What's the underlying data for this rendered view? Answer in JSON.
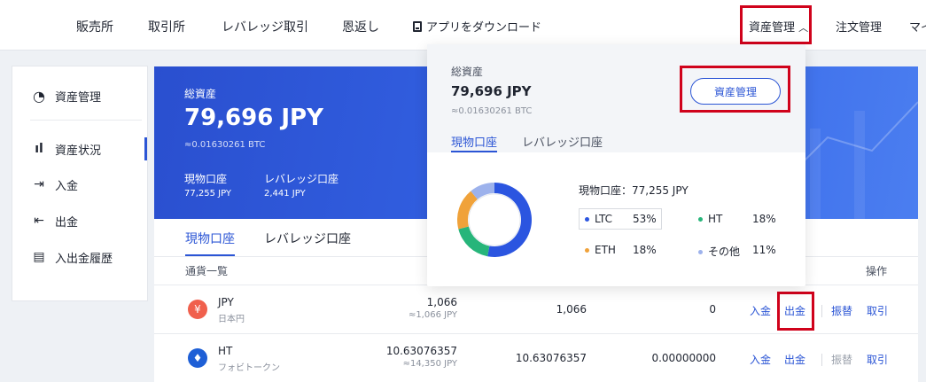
{
  "topnav": {
    "items": [
      "販売所",
      "取引所",
      "レバレッジ取引",
      "恩返し",
      "アプリをダウンロード"
    ],
    "asset_mgmt": "資産管理",
    "order_mgmt": "注文管理",
    "truncated": "マイ"
  },
  "sidebar": {
    "title": "資産管理",
    "items": [
      {
        "label": "資産状況",
        "icon": "bar-chart-icon"
      },
      {
        "label": "入金",
        "icon": "deposit-icon"
      },
      {
        "label": "出金",
        "icon": "withdraw-icon"
      },
      {
        "label": "入出金履歴",
        "icon": "history-icon"
      }
    ]
  },
  "banner": {
    "label": "総資産",
    "total": "79,696 JPY",
    "btc": "≈0.01630261 BTC",
    "spot_label": "現物口座",
    "spot_value": "77,255 JPY",
    "lev_label": "レバレッジ口座",
    "lev_value": "2,441 JPY"
  },
  "tabs": [
    "現物口座",
    "レバレッジ口座"
  ],
  "table": {
    "header_currency": "通貨一覧",
    "header_action": "操作",
    "rows": [
      {
        "symbol": "JPY",
        "name": "日本円",
        "amount": "1,066",
        "amount_sub": "≈1,066 JPY",
        "available": "1,066",
        "frozen": "0",
        "actions": [
          "入金",
          "出金",
          "振替",
          "取引"
        ],
        "icon": "yen-icon",
        "color": "#f0604d",
        "glyph": "¥"
      },
      {
        "symbol": "HT",
        "name": "フォビトークン",
        "amount": "10.63076357",
        "amount_sub": "≈14,350 JPY",
        "available": "10.63076357",
        "frozen": "0.00000000",
        "actions": [
          "入金",
          "出金",
          "振替",
          "取引"
        ],
        "icon": "flame-icon",
        "color": "#1e5fd6",
        "glyph": "♦"
      }
    ]
  },
  "dropdown": {
    "label": "総資産",
    "total": "79,696 JPY",
    "btc": "≈0.01630261 BTC",
    "button": "資産管理",
    "tabs": [
      "現物口座",
      "レバレッジ口座"
    ],
    "summary": "現物口座：77,255 JPY",
    "legend": [
      {
        "name": "LTC",
        "pct": "53%",
        "color": "#2b55e0"
      },
      {
        "name": "HT",
        "pct": "18%",
        "color": "#27b57a"
      },
      {
        "name": "ETH",
        "pct": "18%",
        "color": "#f0a23a"
      },
      {
        "name": "その他",
        "pct": "11%",
        "color": "#9db2ec"
      }
    ]
  },
  "chart_data": {
    "type": "pie",
    "categories": [
      "LTC",
      "HT",
      "ETH",
      "その他"
    ],
    "values": [
      53,
      18,
      18,
      11
    ],
    "title": "",
    "colors": [
      "#2b55e0",
      "#27b57a",
      "#f0a23a",
      "#9db2ec"
    ]
  }
}
